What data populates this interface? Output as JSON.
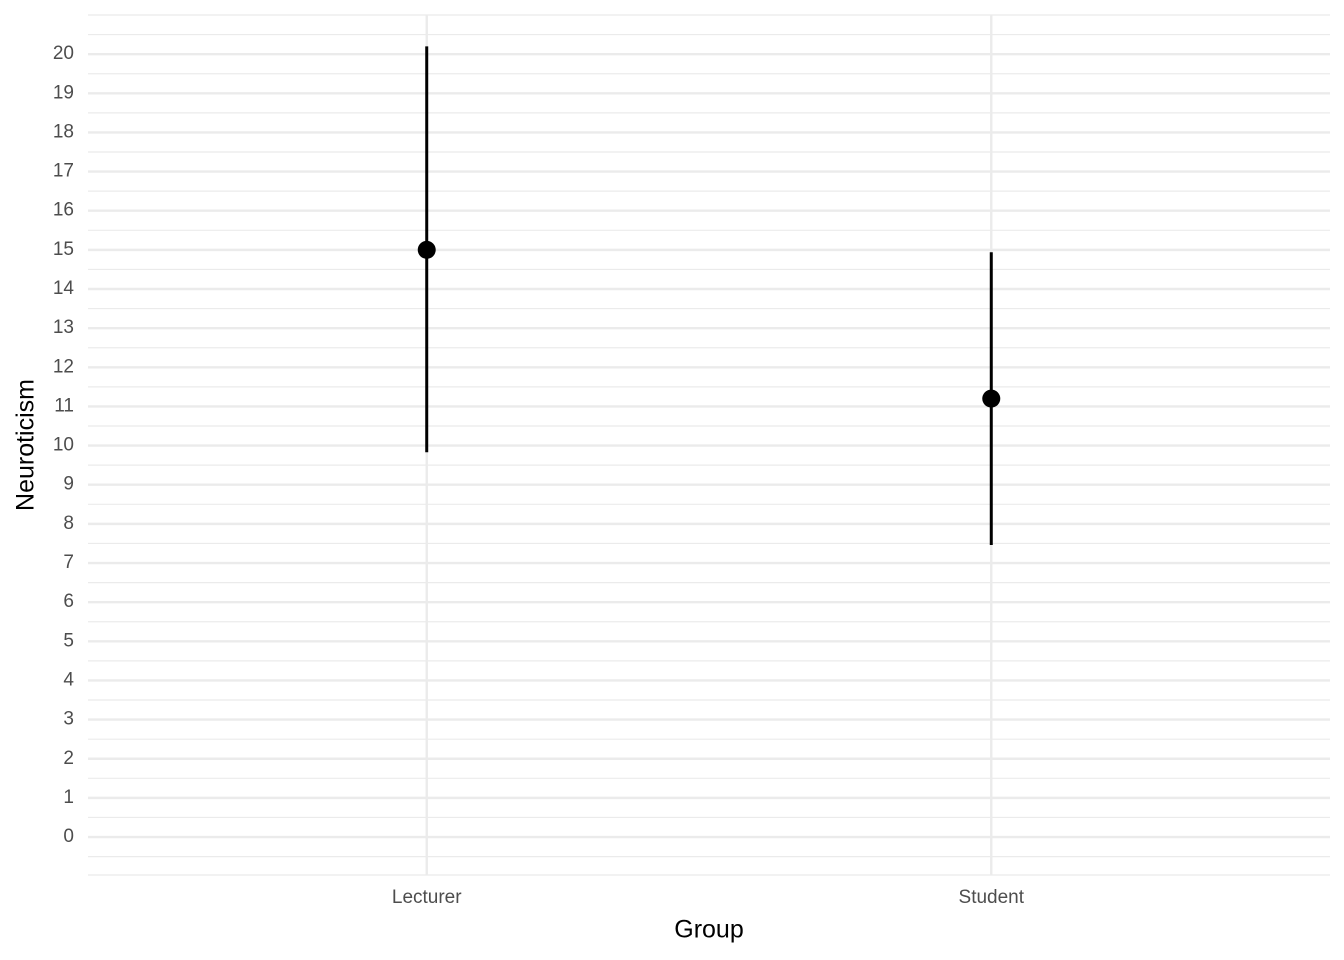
{
  "chart_data": {
    "type": "pointrange",
    "x_label": "Group",
    "y_label": "Neuroticism",
    "categories": [
      "Lecturer",
      "Student"
    ],
    "values": [
      15,
      11.2
    ],
    "lower": [
      9.83,
      7.46
    ],
    "upper": [
      20.2,
      14.94
    ],
    "color": "#000000",
    "ylim": [
      -0.97,
      21.0
    ],
    "yticks": [
      0,
      1,
      2,
      3,
      4,
      5,
      6,
      7,
      8,
      9,
      10,
      11,
      12,
      13,
      14,
      15,
      16,
      17,
      18,
      19,
      20
    ],
    "grid": true
  }
}
